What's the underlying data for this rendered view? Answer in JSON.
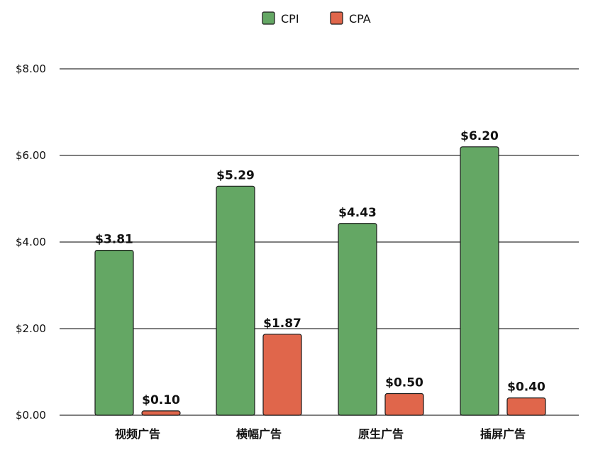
{
  "chart_data": {
    "type": "bar",
    "categories": [
      "视频广告",
      "横幅广告",
      "原生广告",
      "插屏广告"
    ],
    "series": [
      {
        "name": "CPI",
        "values": [
          3.81,
          5.29,
          4.43,
          6.2
        ],
        "labels": [
          "$3.81",
          "$5.29",
          "$4.43",
          "$6.20"
        ],
        "color": "#64a764"
      },
      {
        "name": "CPA",
        "values": [
          0.1,
          1.87,
          0.5,
          0.4
        ],
        "labels": [
          "$0.10",
          "$1.87",
          "$0.50",
          "$0.40"
        ],
        "color": "#e0664b"
      }
    ],
    "y_ticks": [
      {
        "value": 0,
        "label": "$0.00"
      },
      {
        "value": 2,
        "label": "$2.00"
      },
      {
        "value": 4,
        "label": "$4.00"
      },
      {
        "value": 6,
        "label": "$6.00"
      },
      {
        "value": 8,
        "label": "$8.00"
      }
    ],
    "gridline_values": [
      0,
      2,
      4,
      6,
      8
    ],
    "ylim": [
      0,
      8.5
    ],
    "legend_position": "top-center",
    "grid": true,
    "title": "",
    "xlabel": "",
    "ylabel": ""
  }
}
